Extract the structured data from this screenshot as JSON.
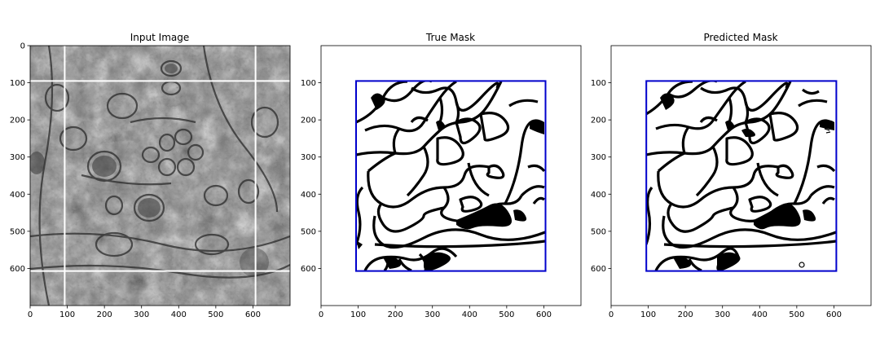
{
  "chart_data": [
    {
      "type": "image",
      "title": "Input Image",
      "xlim": [
        0,
        700
      ],
      "ylim": [
        700,
        0
      ],
      "xticks": [
        0,
        100,
        200,
        300,
        400,
        500,
        600
      ],
      "yticks": [
        0,
        100,
        200,
        300,
        400,
        500,
        600
      ],
      "gridlines": [
        95,
        605
      ],
      "gridline_color": "#ffffff"
    },
    {
      "type": "image",
      "title": "True Mask",
      "xlim": [
        0,
        700
      ],
      "ylim": [
        700,
        0
      ],
      "xticks": [
        0,
        100,
        200,
        300,
        400,
        500,
        600
      ],
      "yticks": [
        100,
        200,
        300,
        400,
        500,
        600
      ],
      "mask_bounds": [
        95,
        95,
        605,
        605
      ],
      "border_color": "#0000cc"
    },
    {
      "type": "image",
      "title": "Predicted Mask",
      "xlim": [
        0,
        700
      ],
      "ylim": [
        700,
        0
      ],
      "xticks": [
        0,
        100,
        200,
        300,
        400,
        500,
        600
      ],
      "yticks": [
        100,
        200,
        300,
        400,
        500,
        600
      ],
      "mask_bounds": [
        95,
        95,
        605,
        605
      ],
      "border_color": "#0000cc"
    }
  ]
}
